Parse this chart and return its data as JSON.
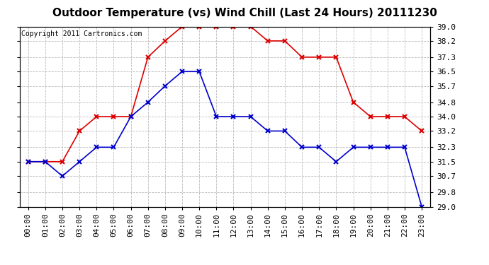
{
  "title": "Outdoor Temperature (vs) Wind Chill (Last 24 Hours) 20111230",
  "copyright": "Copyright 2011 Cartronics.com",
  "x_labels": [
    "00:00",
    "01:00",
    "02:00",
    "03:00",
    "04:00",
    "05:00",
    "06:00",
    "07:00",
    "08:00",
    "09:00",
    "10:00",
    "11:00",
    "12:00",
    "13:00",
    "14:00",
    "15:00",
    "16:00",
    "17:00",
    "18:00",
    "19:00",
    "20:00",
    "21:00",
    "22:00",
    "23:00"
  ],
  "temp": [
    31.5,
    31.5,
    31.5,
    33.2,
    34.0,
    34.0,
    34.0,
    37.3,
    38.2,
    39.0,
    39.0,
    39.0,
    39.0,
    39.0,
    38.2,
    38.2,
    37.3,
    37.3,
    37.3,
    34.8,
    34.0,
    34.0,
    34.0,
    33.2
  ],
  "wind_chill": [
    31.5,
    31.5,
    30.7,
    31.5,
    32.3,
    32.3,
    34.0,
    34.8,
    35.7,
    36.5,
    36.5,
    34.0,
    34.0,
    34.0,
    33.2,
    33.2,
    32.3,
    32.3,
    31.5,
    32.3,
    32.3,
    32.3,
    32.3,
    29.0
  ],
  "temp_color": "#dd0000",
  "wind_chill_color": "#0000cc",
  "ylim_min": 29.0,
  "ylim_max": 39.0,
  "ytick_values": [
    29.0,
    29.8,
    30.7,
    31.5,
    32.3,
    33.2,
    34.0,
    34.8,
    35.7,
    36.5,
    37.3,
    38.2,
    39.0
  ],
  "ytick_labels": [
    "29.0",
    "29.8",
    "30.7",
    "31.5",
    "32.3",
    "33.2",
    "34.0",
    "34.8",
    "35.7",
    "36.5",
    "37.3",
    "38.2",
    "39.0"
  ],
  "background_color": "#ffffff",
  "grid_color": "#bbbbbb",
  "title_fontsize": 11,
  "copyright_fontsize": 7,
  "tick_fontsize": 8,
  "marker_size": 4,
  "line_width": 1.2
}
